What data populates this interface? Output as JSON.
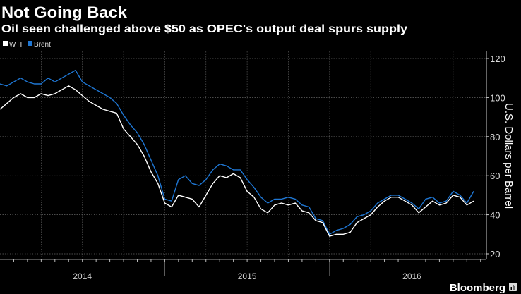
{
  "chart_data": {
    "type": "line",
    "title": "Not Going Back",
    "subtitle": "Oil seen challenged above $50 as OPEC's output deal spurs supply",
    "ylabel": "U.S. Dollars per Barrel",
    "xlabel": "",
    "ylim": [
      20,
      120
    ],
    "yticks": [
      "20",
      "40",
      "60",
      "80",
      "100",
      "120"
    ],
    "year_labels": [
      "2014",
      "2015",
      "2016"
    ],
    "x_unit": "months since Jan 2014, semi-monthly samples",
    "x_start": 0,
    "x_step": 0.5,
    "grid": true,
    "legend_position": "top-left",
    "series": [
      {
        "name": "WTI",
        "color": "#ffffff",
        "values": [
          94,
          97,
          100,
          102,
          100,
          100,
          102,
          101,
          102,
          104,
          106,
          104,
          101,
          98,
          96,
          94,
          93,
          92,
          84,
          80,
          76,
          70,
          62,
          56,
          46,
          44,
          50,
          49,
          48,
          44,
          50,
          56,
          60,
          59,
          61,
          59,
          52,
          49,
          43,
          41,
          45,
          46,
          45,
          46,
          42,
          41,
          37,
          36,
          29,
          30,
          30,
          31,
          36,
          38,
          40,
          44,
          47,
          49,
          49,
          47,
          45,
          41,
          44,
          47,
          45,
          46,
          50,
          49,
          45,
          47
        ]
      },
      {
        "name": "Brent",
        "color": "#1f77d4",
        "values": [
          107,
          106,
          108,
          110,
          108,
          107,
          107,
          110,
          108,
          110,
          112,
          114,
          108,
          106,
          104,
          102,
          100,
          97,
          91,
          86,
          82,
          76,
          68,
          60,
          48,
          47,
          58,
          60,
          56,
          55,
          58,
          63,
          66,
          65,
          63,
          63,
          58,
          54,
          49,
          46,
          48,
          48,
          49,
          48,
          45,
          44,
          38,
          37,
          30,
          32,
          33,
          35,
          39,
          40,
          42,
          46,
          48,
          50,
          50,
          48,
          46,
          43,
          48,
          49,
          46,
          47,
          52,
          50,
          46,
          52
        ]
      }
    ]
  },
  "footer": {
    "brand": "Bloomberg"
  }
}
